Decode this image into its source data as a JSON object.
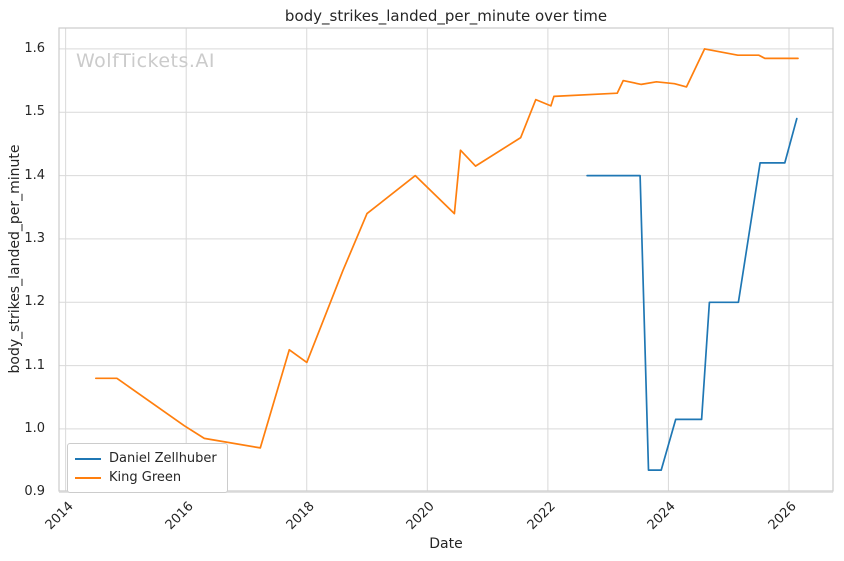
{
  "title": "body_strikes_landed_per_minute over time",
  "watermark": "WolfTickets.AI",
  "colors": {
    "series_blue": "#1f77b4",
    "series_orange": "#ff7f0e",
    "grid": "#d9d9d9",
    "spine": "#cccccc",
    "text": "#262626",
    "watermark": "#cbcbcb",
    "background": "#ffffff"
  },
  "chart_data": {
    "type": "line",
    "title": "body_strikes_landed_per_minute over time",
    "xlabel": "Date",
    "ylabel": "body_strikes_landed_per_minute",
    "x_ticks": [
      2014,
      2016,
      2018,
      2020,
      2022,
      2024,
      2026
    ],
    "y_ticks": [
      0.9,
      1.0,
      1.1,
      1.2,
      1.3,
      1.4,
      1.5,
      1.6
    ],
    "xlim": [
      2013.89,
      2026.73
    ],
    "ylim": [
      0.902,
      1.633
    ],
    "grid": true,
    "legend_position": "lower left",
    "series": [
      {
        "name": "Daniel Zellhuber",
        "color": "#1f77b4",
        "x": [
          2022.65,
          2023.53,
          2023.67,
          2023.88,
          2024.12,
          2024.55,
          2024.68,
          2025.16,
          2025.52,
          2025.93,
          2026.13
        ],
        "y": [
          1.4,
          1.4,
          0.935,
          0.935,
          1.015,
          1.015,
          1.2,
          1.2,
          1.42,
          1.42,
          1.49
        ]
      },
      {
        "name": "King Green",
        "color": "#ff7f0e",
        "x": [
          2014.5,
          2014.85,
          2015.97,
          2016.3,
          2017.23,
          2017.71,
          2018.0,
          2018.6,
          2019.0,
          2019.8,
          2020.45,
          2020.55,
          2020.8,
          2021.55,
          2021.8,
          2022.05,
          2022.1,
          2023.15,
          2023.25,
          2023.55,
          2023.8,
          2024.1,
          2024.3,
          2024.6,
          2025.15,
          2025.5,
          2025.6,
          2026.15
        ],
        "y": [
          1.08,
          1.08,
          1.005,
          0.985,
          0.97,
          1.125,
          1.105,
          1.25,
          1.34,
          1.4,
          1.34,
          1.44,
          1.415,
          1.46,
          1.52,
          1.51,
          1.525,
          1.53,
          1.55,
          1.544,
          1.548,
          1.545,
          1.54,
          1.6,
          1.59,
          1.59,
          1.585,
          1.585
        ]
      }
    ]
  }
}
